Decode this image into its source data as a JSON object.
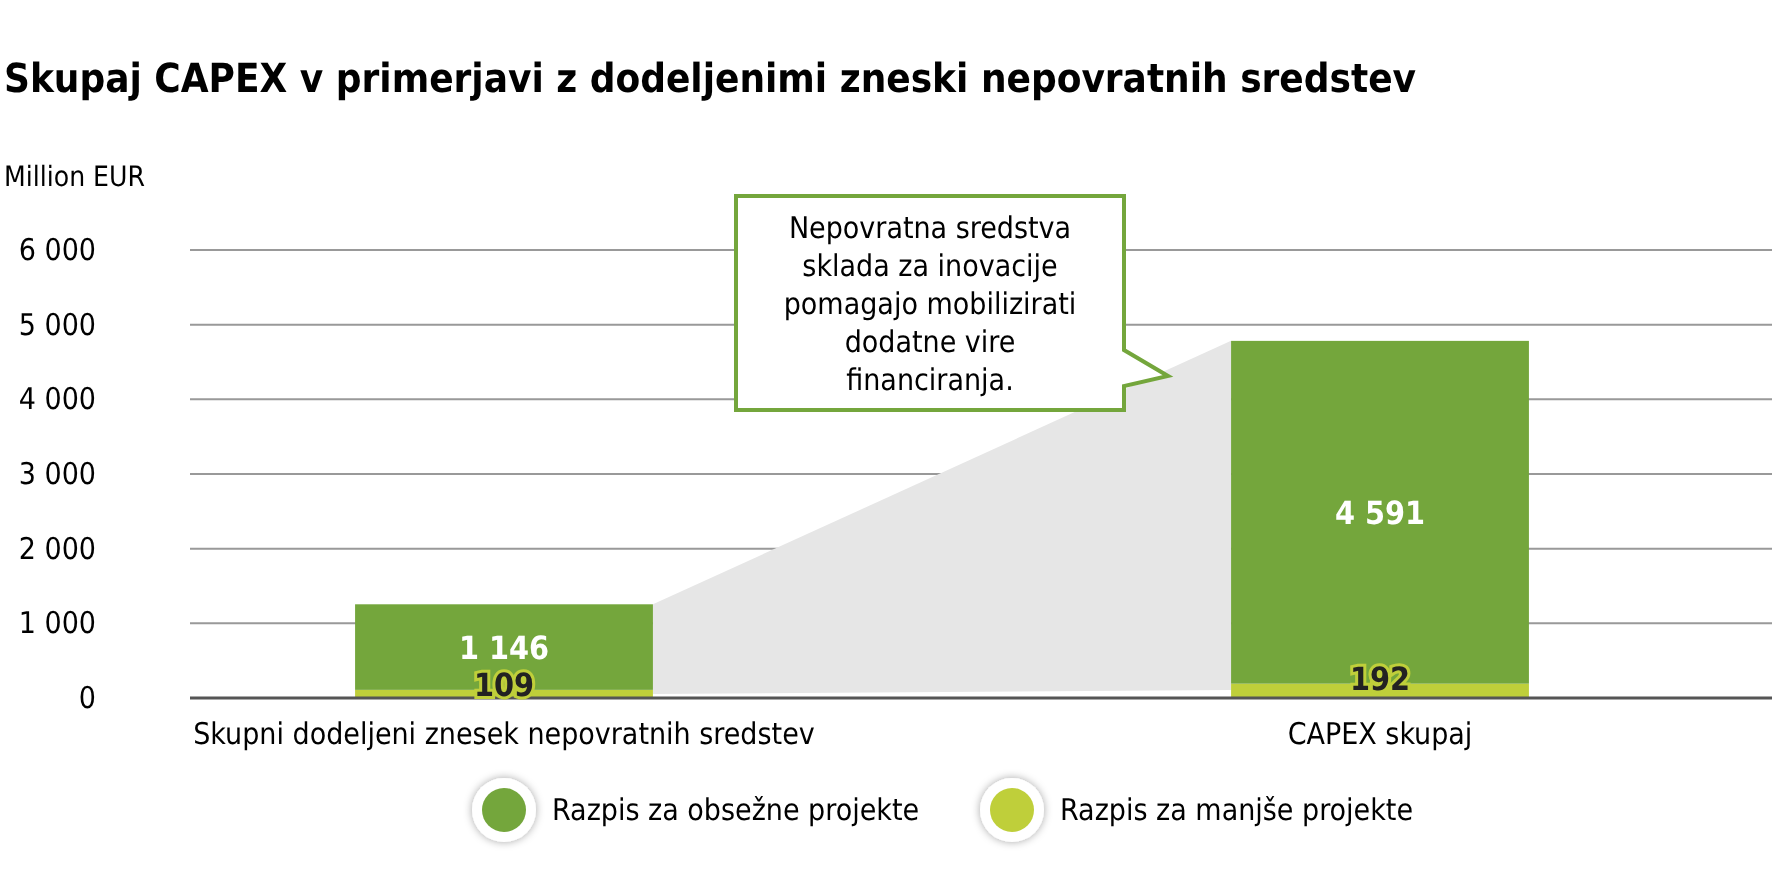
{
  "chart_data": {
    "type": "bar",
    "title": "Skupaj CAPEX v primerjavi z dodeljenimi zneski nepovratnih sredstev",
    "ylabel": "Million EUR",
    "categories": [
      "Skupni dodeljeni znesek nepovratnih sredstev",
      "CAPEX skupaj"
    ],
    "stacked": true,
    "series": [
      {
        "name": "Razpis za manjše projekte",
        "color": "#bfcf3a",
        "values": [
          109,
          192
        ],
        "value_labels": [
          "109",
          "192"
        ]
      },
      {
        "name": "Razpis za obsežne projekte",
        "color": "#74a63c",
        "values": [
          1146,
          4591
        ],
        "value_labels": [
          "1 146",
          "4 591"
        ]
      }
    ],
    "ylim": [
      0,
      6000
    ],
    "yticks": [
      {
        "value": 0,
        "label": "0"
      },
      {
        "value": 1000,
        "label": "1 000"
      },
      {
        "value": 2000,
        "label": "2 000"
      },
      {
        "value": 3000,
        "label": "3 000"
      },
      {
        "value": 4000,
        "label": "4 000"
      },
      {
        "value": 5000,
        "label": "5 000"
      },
      {
        "value": 6000,
        "label": "6 000"
      }
    ],
    "grid": "y",
    "legend": "bottom",
    "annotations": [
      "Nepovratna sredstva sklada za inovacije pomagajo mobilizirati dodatne vire financiranja."
    ]
  }
}
